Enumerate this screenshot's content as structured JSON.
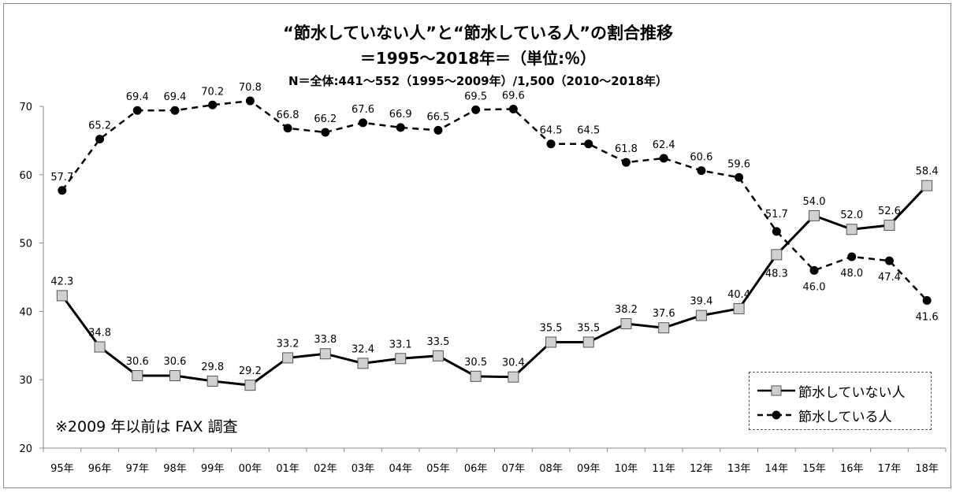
{
  "title_line1": "“節水していない人”と“節水している人”の割合推移",
  "title_line2": "＝1995～2018年＝（単位:％）",
  "title_line3": "N＝全体:441～552（1995～2009年）/1,500（2010～2018年）",
  "note": "※2009 年以前は FAX 調査",
  "chart_data": {
    "type": "line",
    "categories": [
      "95年",
      "96年",
      "97年",
      "98年",
      "99年",
      "00年",
      "01年",
      "02年",
      "03年",
      "04年",
      "05年",
      "06年",
      "07年",
      "08年",
      "09年",
      "10年",
      "11年",
      "12年",
      "13年",
      "14年",
      "15年",
      "16年",
      "17年",
      "18年"
    ],
    "ylim": [
      20,
      70
    ],
    "yticks": [
      20,
      30,
      40,
      50,
      60,
      70
    ],
    "grid": false,
    "legend_position": "bottom-right",
    "series": [
      {
        "name": "節水していない人",
        "line_style": "solid",
        "marker": "square",
        "color": "#000000",
        "marker_fill": "#d0d0d0",
        "values": [
          42.3,
          34.8,
          30.6,
          30.6,
          29.8,
          29.2,
          33.2,
          33.8,
          32.4,
          33.1,
          33.5,
          30.5,
          30.4,
          35.5,
          35.5,
          38.2,
          37.6,
          39.4,
          40.4,
          48.3,
          54.0,
          52.0,
          52.6,
          58.4
        ]
      },
      {
        "name": "節水している人",
        "line_style": "dashed",
        "marker": "circle",
        "color": "#000000",
        "marker_fill": "#000000",
        "values": [
          57.7,
          65.2,
          69.4,
          69.4,
          70.2,
          70.8,
          66.8,
          66.2,
          67.6,
          66.9,
          66.5,
          69.5,
          69.6,
          64.5,
          64.5,
          61.8,
          62.4,
          60.6,
          59.6,
          51.7,
          46.0,
          48.0,
          47.4,
          41.6
        ]
      }
    ]
  }
}
